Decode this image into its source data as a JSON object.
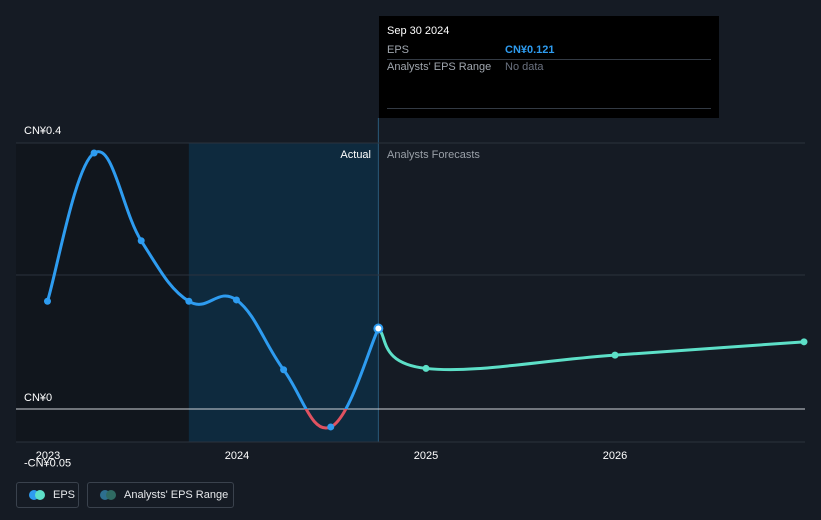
{
  "tooltip": {
    "date": "Sep 30 2024",
    "rows": [
      {
        "label": "EPS",
        "value": "CN¥0.121"
      },
      {
        "label": "Analysts' EPS Range",
        "value": "No data"
      }
    ]
  },
  "labels": {
    "actual": "Actual",
    "forecast": "Analysts Forecasts"
  },
  "legend": {
    "eps": "EPS",
    "range": "Analysts' EPS Range"
  },
  "colors": {
    "background": "#151b24",
    "actual_line": "#2e9cf0",
    "negative_line": "#e05260",
    "forecast_line": "#5de0c8",
    "highlight_band": "#0e2a3e",
    "past_band": "#11161d"
  },
  "chart_data": {
    "type": "line",
    "x_ticks": [
      "2023",
      "2024",
      "2025",
      "2026"
    ],
    "y_ticks": [
      "CN¥0.4",
      "CN¥0",
      "-CN¥0.05"
    ],
    "ylim": [
      -0.05,
      0.4
    ],
    "grid": true,
    "series": [
      {
        "name": "EPS",
        "points": [
          {
            "x": "2022-12-31",
            "y": 0.162
          },
          {
            "x": "2023-03-31",
            "y": 0.385
          },
          {
            "x": "2023-06-30",
            "y": 0.253
          },
          {
            "x": "2023-09-30",
            "y": 0.162
          },
          {
            "x": "2023-12-31",
            "y": 0.164
          },
          {
            "x": "2024-03-31",
            "y": 0.059
          },
          {
            "x": "2024-06-30",
            "y": -0.027
          },
          {
            "x": "2024-09-30",
            "y": 0.121
          }
        ]
      },
      {
        "name": "Analysts Forecasts",
        "points": [
          {
            "x": "2024-09-30",
            "y": 0.121
          },
          {
            "x": "2024-12-31",
            "y": 0.061
          },
          {
            "x": "2025-12-31",
            "y": 0.081
          },
          {
            "x": "2026-12-31",
            "y": 0.101
          }
        ]
      }
    ]
  }
}
